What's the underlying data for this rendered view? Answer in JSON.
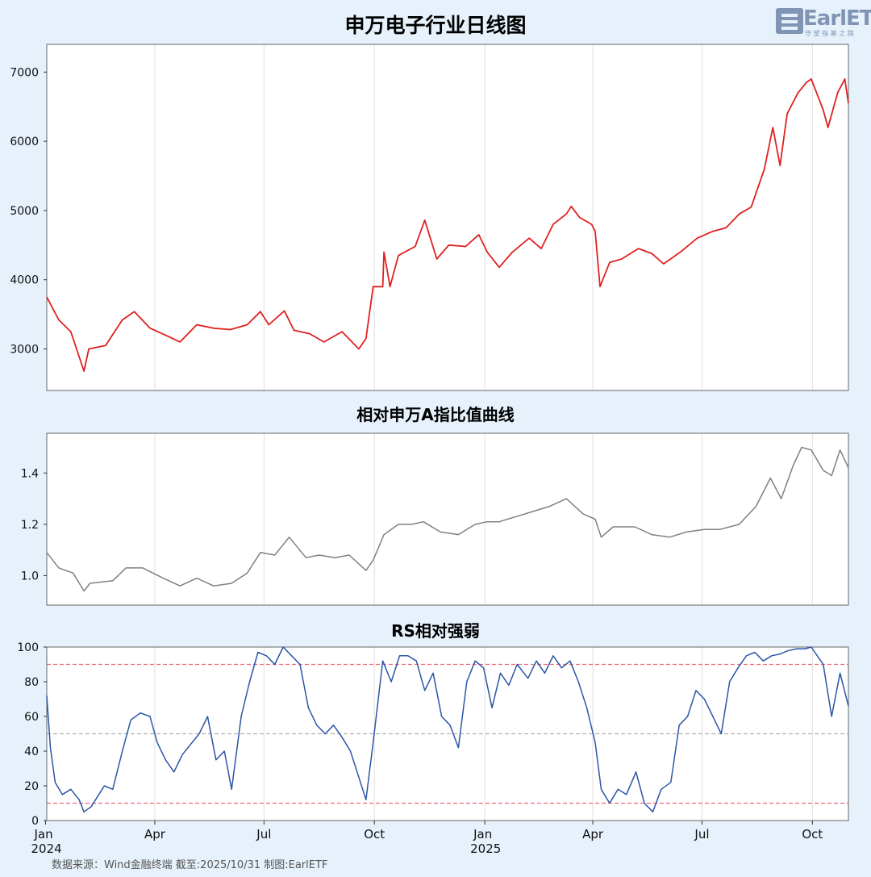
{
  "logo": {
    "text": "EarlETF",
    "sub": "守 望 指 基 之 路"
  },
  "footer": "数据来源：Wind金融终端 截至:2025/10/31 制图:EarlETF",
  "colors": {
    "price": "#e02020",
    "ratio": "#808080",
    "rs": "#2a56a6",
    "band": "#f0687a",
    "mid": "#b0b0b0",
    "grid": "#e0e0e0",
    "bg": "#e6f1fb",
    "plot": "#ffffff"
  },
  "x_axis": {
    "start": "2024-01-02",
    "end": "2025-10-31",
    "ticks": [
      {
        "date": "2024-01-01",
        "label": "Jan",
        "year": "2024"
      },
      {
        "date": "2024-04-01",
        "label": "Apr",
        "year": ""
      },
      {
        "date": "2024-07-01",
        "label": "Jul",
        "year": ""
      },
      {
        "date": "2024-10-01",
        "label": "Oct",
        "year": ""
      },
      {
        "date": "2025-01-01",
        "label": "Jan",
        "year": "2025"
      },
      {
        "date": "2025-04-01",
        "label": "Apr",
        "year": ""
      },
      {
        "date": "2025-07-01",
        "label": "Jul",
        "year": ""
      },
      {
        "date": "2025-10-01",
        "label": "Oct",
        "year": ""
      }
    ]
  },
  "chart_data": [
    {
      "type": "line",
      "title": "申万电子行业日线图",
      "ylim": [
        2400,
        7400
      ],
      "yticks": [
        3000,
        4000,
        5000,
        6000,
        7000
      ],
      "series": [
        {
          "values": [
            [
              "2024-01-02",
              3750
            ],
            [
              "2024-01-12",
              3420
            ],
            [
              "2024-01-22",
              3250
            ],
            [
              "2024-02-02",
              2680
            ],
            [
              "2024-02-06",
              3000
            ],
            [
              "2024-02-20",
              3050
            ],
            [
              "2024-03-05",
              3420
            ],
            [
              "2024-03-15",
              3540
            ],
            [
              "2024-03-28",
              3300
            ],
            [
              "2024-04-10",
              3200
            ],
            [
              "2024-04-22",
              3100
            ],
            [
              "2024-05-06",
              3350
            ],
            [
              "2024-05-20",
              3300
            ],
            [
              "2024-06-03",
              3280
            ],
            [
              "2024-06-17",
              3350
            ],
            [
              "2024-06-28",
              3540
            ],
            [
              "2024-07-05",
              3350
            ],
            [
              "2024-07-18",
              3550
            ],
            [
              "2024-07-26",
              3270
            ],
            [
              "2024-08-08",
              3220
            ],
            [
              "2024-08-20",
              3100
            ],
            [
              "2024-09-04",
              3250
            ],
            [
              "2024-09-18",
              3000
            ],
            [
              "2024-09-24",
              3150
            ],
            [
              "2024-09-30",
              3900
            ],
            [
              "2024-10-08",
              3900
            ],
            [
              "2024-10-09",
              4400
            ],
            [
              "2024-10-14",
              3900
            ],
            [
              "2024-10-21",
              4350
            ],
            [
              "2024-11-04",
              4480
            ],
            [
              "2024-11-12",
              4860
            ],
            [
              "2024-11-22",
              4300
            ],
            [
              "2024-12-02",
              4500
            ],
            [
              "2024-12-16",
              4480
            ],
            [
              "2024-12-27",
              4650
            ],
            [
              "2025-01-03",
              4400
            ],
            [
              "2025-01-13",
              4180
            ],
            [
              "2025-01-24",
              4400
            ],
            [
              "2025-02-07",
              4600
            ],
            [
              "2025-02-17",
              4450
            ],
            [
              "2025-02-27",
              4800
            ],
            [
              "2025-03-10",
              4950
            ],
            [
              "2025-03-14",
              5060
            ],
            [
              "2025-03-21",
              4900
            ],
            [
              "2025-03-31",
              4800
            ],
            [
              "2025-04-03",
              4700
            ],
            [
              "2025-04-07",
              3900
            ],
            [
              "2025-04-15",
              4250
            ],
            [
              "2025-04-25",
              4300
            ],
            [
              "2025-05-09",
              4450
            ],
            [
              "2025-05-20",
              4380
            ],
            [
              "2025-05-30",
              4230
            ],
            [
              "2025-06-13",
              4400
            ],
            [
              "2025-06-27",
              4600
            ],
            [
              "2025-07-10",
              4700
            ],
            [
              "2025-07-21",
              4750
            ],
            [
              "2025-08-01",
              4950
            ],
            [
              "2025-08-11",
              5050
            ],
            [
              "2025-08-22",
              5600
            ],
            [
              "2025-08-29",
              6200
            ],
            [
              "2025-09-04",
              5650
            ],
            [
              "2025-09-10",
              6400
            ],
            [
              "2025-09-19",
              6700
            ],
            [
              "2025-09-26",
              6850
            ],
            [
              "2025-09-30",
              6900
            ],
            [
              "2025-10-10",
              6450
            ],
            [
              "2025-10-14",
              6200
            ],
            [
              "2025-10-22",
              6700
            ],
            [
              "2025-10-28",
              6900
            ],
            [
              "2025-10-31",
              6550
            ]
          ]
        }
      ]
    },
    {
      "type": "line",
      "title": "相对申万A指比值曲线",
      "ylim": [
        0.885,
        1.555
      ],
      "yticks": [
        1.0,
        1.2,
        1.4
      ],
      "series": [
        {
          "values": [
            [
              "2024-01-02",
              1.09
            ],
            [
              "2024-01-12",
              1.03
            ],
            [
              "2024-01-24",
              1.01
            ],
            [
              "2024-02-02",
              0.94
            ],
            [
              "2024-02-07",
              0.97
            ],
            [
              "2024-02-26",
              0.98
            ],
            [
              "2024-03-08",
              1.03
            ],
            [
              "2024-03-22",
              1.03
            ],
            [
              "2024-04-08",
              0.99
            ],
            [
              "2024-04-22",
              0.96
            ],
            [
              "2024-05-06",
              0.99
            ],
            [
              "2024-05-20",
              0.96
            ],
            [
              "2024-06-04",
              0.97
            ],
            [
              "2024-06-17",
              1.01
            ],
            [
              "2024-06-28",
              1.09
            ],
            [
              "2024-07-10",
              1.08
            ],
            [
              "2024-07-22",
              1.15
            ],
            [
              "2024-08-05",
              1.07
            ],
            [
              "2024-08-16",
              1.08
            ],
            [
              "2024-08-29",
              1.07
            ],
            [
              "2024-09-10",
              1.08
            ],
            [
              "2024-09-24",
              1.02
            ],
            [
              "2024-09-30",
              1.06
            ],
            [
              "2024-10-09",
              1.16
            ],
            [
              "2024-10-21",
              1.2
            ],
            [
              "2024-11-01",
              1.2
            ],
            [
              "2024-11-11",
              1.21
            ],
            [
              "2024-11-25",
              1.17
            ],
            [
              "2024-12-10",
              1.16
            ],
            [
              "2024-12-24",
              1.2
            ],
            [
              "2025-01-03",
              1.21
            ],
            [
              "2025-01-13",
              1.21
            ],
            [
              "2025-01-27",
              1.23
            ],
            [
              "2025-02-10",
              1.25
            ],
            [
              "2025-02-24",
              1.27
            ],
            [
              "2025-03-10",
              1.3
            ],
            [
              "2025-03-24",
              1.24
            ],
            [
              "2025-04-03",
              1.22
            ],
            [
              "2025-04-08",
              1.15
            ],
            [
              "2025-04-18",
              1.19
            ],
            [
              "2025-05-06",
              1.19
            ],
            [
              "2025-05-20",
              1.16
            ],
            [
              "2025-06-04",
              1.15
            ],
            [
              "2025-06-18",
              1.17
            ],
            [
              "2025-07-03",
              1.18
            ],
            [
              "2025-07-16",
              1.18
            ],
            [
              "2025-08-01",
              1.2
            ],
            [
              "2025-08-15",
              1.27
            ],
            [
              "2025-08-27",
              1.38
            ],
            [
              "2025-09-05",
              1.3
            ],
            [
              "2025-09-15",
              1.43
            ],
            [
              "2025-09-22",
              1.5
            ],
            [
              "2025-09-30",
              1.49
            ],
            [
              "2025-10-10",
              1.41
            ],
            [
              "2025-10-17",
              1.39
            ],
            [
              "2025-10-24",
              1.49
            ],
            [
              "2025-10-31",
              1.42
            ]
          ]
        }
      ]
    },
    {
      "type": "line",
      "title": "RS相对强弱",
      "ylim": [
        0,
        100
      ],
      "yticks": [
        0,
        20,
        40,
        60,
        80,
        100
      ],
      "reference_lines": [
        10,
        50,
        90
      ],
      "series": [
        {
          "values": [
            [
              "2024-01-02",
              72
            ],
            [
              "2024-01-05",
              42
            ],
            [
              "2024-01-09",
              22
            ],
            [
              "2024-01-15",
              15
            ],
            [
              "2024-01-22",
              18
            ],
            [
              "2024-01-29",
              12
            ],
            [
              "2024-02-02",
              5
            ],
            [
              "2024-02-08",
              8
            ],
            [
              "2024-02-19",
              20
            ],
            [
              "2024-02-26",
              18
            ],
            [
              "2024-03-05",
              40
            ],
            [
              "2024-03-12",
              58
            ],
            [
              "2024-03-20",
              62
            ],
            [
              "2024-03-28",
              60
            ],
            [
              "2024-04-03",
              45
            ],
            [
              "2024-04-10",
              35
            ],
            [
              "2024-04-17",
              28
            ],
            [
              "2024-04-24",
              38
            ],
            [
              "2024-05-08",
              50
            ],
            [
              "2024-05-15",
              60
            ],
            [
              "2024-05-22",
              35
            ],
            [
              "2024-05-29",
              40
            ],
            [
              "2024-06-04",
              18
            ],
            [
              "2024-06-12",
              60
            ],
            [
              "2024-06-19",
              80
            ],
            [
              "2024-06-26",
              97
            ],
            [
              "2024-07-03",
              95
            ],
            [
              "2024-07-10",
              90
            ],
            [
              "2024-07-17",
              100
            ],
            [
              "2024-07-24",
              95
            ],
            [
              "2024-07-31",
              90
            ],
            [
              "2024-08-07",
              65
            ],
            [
              "2024-08-14",
              55
            ],
            [
              "2024-08-21",
              50
            ],
            [
              "2024-08-28",
              55
            ],
            [
              "2024-09-04",
              48
            ],
            [
              "2024-09-11",
              40
            ],
            [
              "2024-09-18",
              25
            ],
            [
              "2024-09-24",
              12
            ],
            [
              "2024-09-30",
              45
            ],
            [
              "2024-10-08",
              92
            ],
            [
              "2024-10-15",
              80
            ],
            [
              "2024-10-22",
              95
            ],
            [
              "2024-10-29",
              95
            ],
            [
              "2024-11-05",
              92
            ],
            [
              "2024-11-12",
              75
            ],
            [
              "2024-11-19",
              85
            ],
            [
              "2024-11-26",
              60
            ],
            [
              "2024-12-03",
              55
            ],
            [
              "2024-12-10",
              42
            ],
            [
              "2024-12-17",
              80
            ],
            [
              "2024-12-24",
              92
            ],
            [
              "2024-12-31",
              88
            ],
            [
              "2025-01-07",
              65
            ],
            [
              "2025-01-14",
              85
            ],
            [
              "2025-01-21",
              78
            ],
            [
              "2025-01-28",
              90
            ],
            [
              "2025-02-06",
              82
            ],
            [
              "2025-02-13",
              92
            ],
            [
              "2025-02-20",
              85
            ],
            [
              "2025-02-27",
              95
            ],
            [
              "2025-03-06",
              88
            ],
            [
              "2025-03-13",
              92
            ],
            [
              "2025-03-20",
              80
            ],
            [
              "2025-03-27",
              65
            ],
            [
              "2025-04-03",
              45
            ],
            [
              "2025-04-08",
              18
            ],
            [
              "2025-04-15",
              10
            ],
            [
              "2025-04-22",
              18
            ],
            [
              "2025-04-29",
              15
            ],
            [
              "2025-05-07",
              28
            ],
            [
              "2025-05-14",
              10
            ],
            [
              "2025-05-21",
              5
            ],
            [
              "2025-05-28",
              18
            ],
            [
              "2025-06-05",
              22
            ],
            [
              "2025-06-12",
              55
            ],
            [
              "2025-06-19",
              60
            ],
            [
              "2025-06-26",
              75
            ],
            [
              "2025-07-03",
              70
            ],
            [
              "2025-07-10",
              60
            ],
            [
              "2025-07-17",
              50
            ],
            [
              "2025-07-24",
              80
            ],
            [
              "2025-07-31",
              88
            ],
            [
              "2025-08-07",
              95
            ],
            [
              "2025-08-14",
              97
            ],
            [
              "2025-08-21",
              92
            ],
            [
              "2025-08-28",
              95
            ],
            [
              "2025-09-04",
              96
            ],
            [
              "2025-09-11",
              98
            ],
            [
              "2025-09-18",
              99
            ],
            [
              "2025-09-25",
              99
            ],
            [
              "2025-09-30",
              100
            ],
            [
              "2025-10-10",
              90
            ],
            [
              "2025-10-17",
              60
            ],
            [
              "2025-10-24",
              85
            ],
            [
              "2025-10-31",
              66
            ]
          ]
        }
      ]
    }
  ]
}
